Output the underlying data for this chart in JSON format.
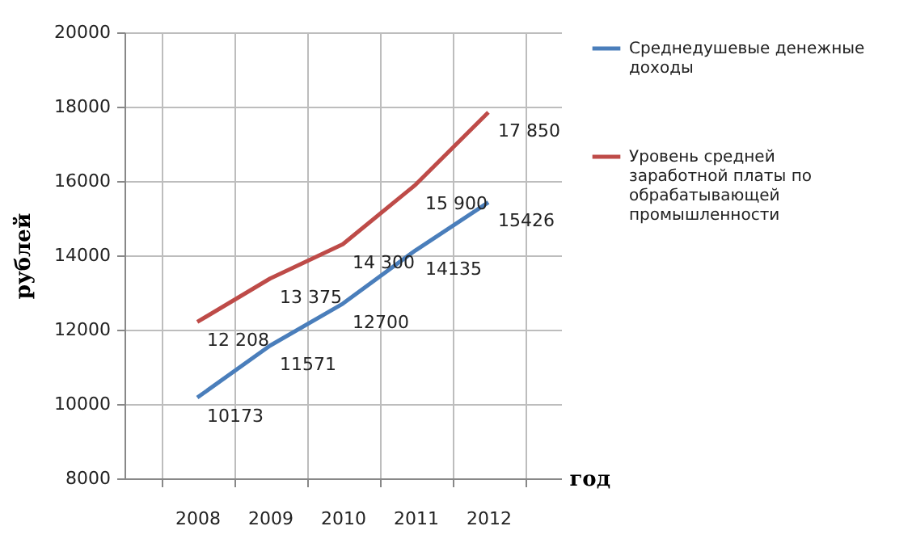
{
  "chart_data": {
    "type": "line",
    "xlabel": "год",
    "ylabel": "рублей",
    "categories": [
      "2008",
      "2009",
      "2010",
      "2011",
      "2012"
    ],
    "series": [
      {
        "name": "Среднедушевые денежные доходы",
        "color": "#4a7ebb",
        "values": [
          10173,
          11571,
          12700,
          14135,
          15426
        ],
        "value_labels": [
          "10173",
          "11571",
          "12700",
          "14135",
          "15426"
        ]
      },
      {
        "name": "Уровень средней заработной платы по обрабатывающей промышленности",
        "color": "#be4b48",
        "values": [
          12208,
          13375,
          14300,
          15900,
          17850
        ],
        "value_labels": [
          "12 208",
          "13 375",
          "14 300",
          "15 900",
          "17 850"
        ]
      }
    ],
    "ylim": [
      8000,
      20000
    ],
    "yticks": [
      8000,
      10000,
      12000,
      14000,
      16000,
      18000,
      20000
    ],
    "grid": true,
    "legend": "right",
    "marker": "none",
    "line_style": "solid"
  }
}
